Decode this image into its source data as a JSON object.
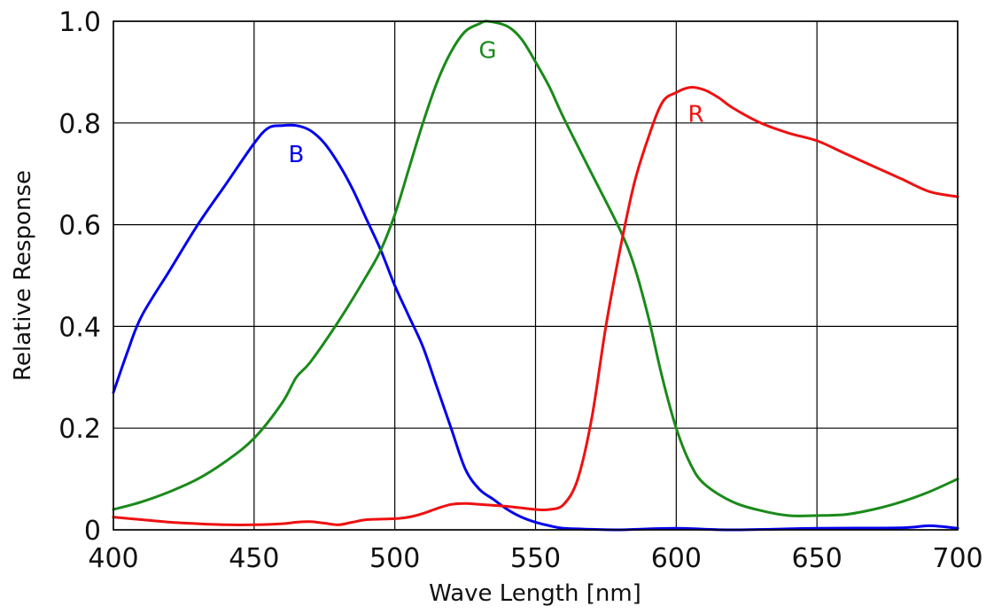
{
  "chart_data": {
    "type": "line",
    "title": "",
    "xlabel": "Wave Length [nm]",
    "ylabel": "Relative Response",
    "xlim": [
      400,
      700
    ],
    "ylim": [
      0,
      1.0
    ],
    "grid": true,
    "x_ticks": [
      400,
      450,
      500,
      550,
      600,
      650,
      700
    ],
    "x_tick_labels": [
      "400",
      "450",
      "500",
      "550",
      "600",
      "650",
      "700"
    ],
    "y_ticks": [
      0,
      0.2,
      0.4,
      0.6,
      0.8,
      1.0
    ],
    "y_tick_labels": [
      "0",
      "0.2",
      "0.4",
      "0.6",
      "0.8",
      "1.0"
    ],
    "series": [
      {
        "name": "B",
        "color": "#0000ee",
        "label_at": [
          465,
          0.74
        ],
        "x": [
          400,
          405,
          410,
          420,
          430,
          440,
          450,
          455,
          460,
          465,
          470,
          475,
          480,
          485,
          490,
          495,
          500,
          505,
          510,
          515,
          520,
          525,
          530,
          535,
          540,
          545,
          550,
          555,
          560,
          570,
          580,
          600,
          620,
          650,
          680,
          690,
          700
        ],
        "y": [
          0.27,
          0.35,
          0.42,
          0.51,
          0.6,
          0.68,
          0.76,
          0.79,
          0.795,
          0.795,
          0.785,
          0.76,
          0.72,
          0.67,
          0.61,
          0.55,
          0.48,
          0.42,
          0.36,
          0.28,
          0.2,
          0.12,
          0.08,
          0.06,
          0.04,
          0.025,
          0.015,
          0.008,
          0.003,
          0.001,
          0.0,
          0.003,
          0.0,
          0.003,
          0.004,
          0.008,
          0.003
        ]
      },
      {
        "name": "G",
        "color": "#1a8a1a",
        "label_at": [
          533,
          0.945
        ],
        "x": [
          400,
          410,
          420,
          430,
          440,
          450,
          460,
          465,
          470,
          480,
          490,
          495,
          500,
          505,
          510,
          515,
          520,
          525,
          530,
          533,
          540,
          545,
          550,
          555,
          560,
          570,
          580,
          585,
          590,
          595,
          600,
          605,
          610,
          620,
          630,
          640,
          650,
          660,
          670,
          680,
          690,
          700
        ],
        "y": [
          0.04,
          0.055,
          0.075,
          0.1,
          0.135,
          0.18,
          0.25,
          0.3,
          0.33,
          0.41,
          0.5,
          0.55,
          0.62,
          0.71,
          0.8,
          0.88,
          0.94,
          0.98,
          0.995,
          1.0,
          0.99,
          0.965,
          0.92,
          0.87,
          0.81,
          0.7,
          0.59,
          0.52,
          0.42,
          0.3,
          0.2,
          0.13,
          0.09,
          0.055,
          0.038,
          0.028,
          0.028,
          0.03,
          0.04,
          0.055,
          0.075,
          0.1
        ]
      },
      {
        "name": "R",
        "color": "#ee1111",
        "label_at": [
          607,
          0.82
        ],
        "x": [
          400,
          410,
          420,
          430,
          440,
          450,
          460,
          465,
          470,
          475,
          480,
          485,
          490,
          500,
          505,
          510,
          515,
          520,
          525,
          530,
          535,
          540,
          545,
          550,
          555,
          560,
          565,
          570,
          575,
          580,
          585,
          590,
          595,
          600,
          605,
          610,
          615,
          620,
          630,
          640,
          650,
          660,
          670,
          680,
          690,
          700
        ],
        "y": [
          0.025,
          0.02,
          0.015,
          0.012,
          0.01,
          0.01,
          0.012,
          0.015,
          0.016,
          0.013,
          0.01,
          0.015,
          0.02,
          0.022,
          0.025,
          0.032,
          0.042,
          0.05,
          0.052,
          0.05,
          0.048,
          0.046,
          0.043,
          0.04,
          0.04,
          0.05,
          0.1,
          0.22,
          0.4,
          0.55,
          0.68,
          0.77,
          0.84,
          0.86,
          0.87,
          0.865,
          0.85,
          0.83,
          0.8,
          0.78,
          0.765,
          0.74,
          0.715,
          0.69,
          0.665,
          0.655
        ]
      }
    ]
  }
}
